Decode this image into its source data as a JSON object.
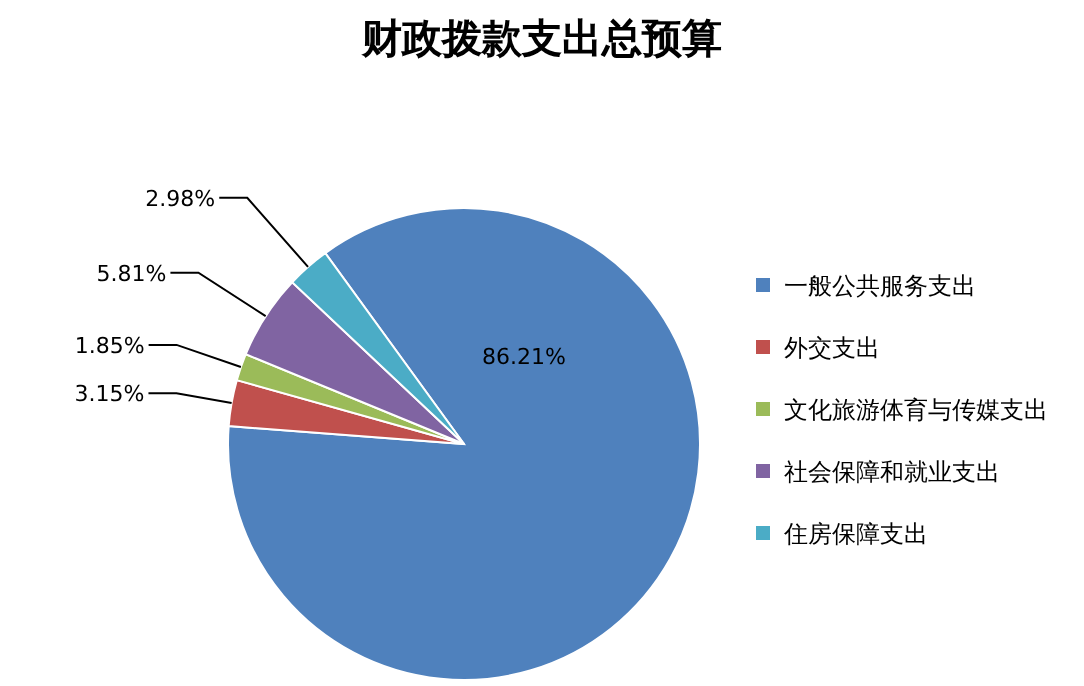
{
  "chart_data": {
    "type": "pie",
    "title": "财政拨款支出总预算",
    "categories": [
      "一般公共服务支出",
      "外交支出",
      "文化旅游体育与传媒支出",
      "社会保障和就业支出",
      "住房保障支出"
    ],
    "values": [
      86.21,
      3.15,
      1.85,
      5.81,
      2.98
    ],
    "colors": [
      "#4f81bd",
      "#c0504d",
      "#9bbb59",
      "#8064a2",
      "#4bacc6"
    ],
    "value_labels": [
      "86.21%",
      "3.15%",
      "1.85%",
      "5.81%",
      "2.98%"
    ],
    "legend": "right"
  }
}
